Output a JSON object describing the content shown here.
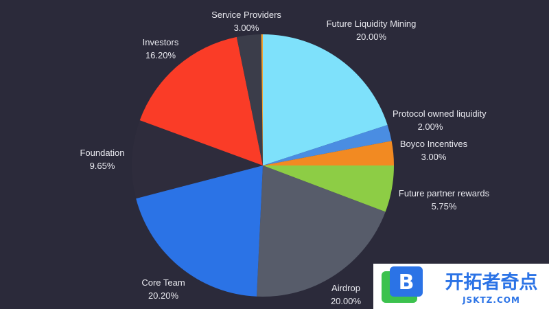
{
  "chart_data": {
    "type": "pie",
    "start_angle_deg": 0,
    "direction": "clockwise",
    "slices": [
      {
        "label": "Future Liquidity Mining",
        "pct_label": "20.00%",
        "value": 20.0,
        "color": "#7ee1fb"
      },
      {
        "label": "Protocol owned liquidity",
        "pct_label": "2.00%",
        "value": 2.0,
        "color": "#4a8de2"
      },
      {
        "label": "Boyco Incentives",
        "pct_label": "3.00%",
        "value": 3.0,
        "color": "#f28a22"
      },
      {
        "label": "Future partner rewards",
        "pct_label": "5.75%",
        "value": 5.75,
        "color": "#8dcd45"
      },
      {
        "label": "Airdrop",
        "pct_label": "20.00%",
        "value": 20.0,
        "color": "#575c6a"
      },
      {
        "label": "Core Team",
        "pct_label": "20.20%",
        "value": 20.2,
        "color": "#2b73e6"
      },
      {
        "label": "Foundation",
        "pct_label": "9.65%",
        "value": 9.65,
        "color": "#2e2c3c"
      },
      {
        "label": "Investors",
        "pct_label": "16.20%",
        "value": 16.2,
        "color": "#fa3c27"
      },
      {
        "label": "Service Providers",
        "pct_label": "3.00%",
        "value": 3.0,
        "color": "#3b3d4a"
      },
      {
        "label": "",
        "pct_label": "",
        "value": 0.2,
        "color": "#f0a030"
      }
    ]
  },
  "watermark": {
    "logo_letter": "B",
    "title": "开拓者奇点",
    "subtitle": "JSKTZ.COM",
    "accent_color": "#2b73e6",
    "logo_color": "#3cc24e"
  }
}
